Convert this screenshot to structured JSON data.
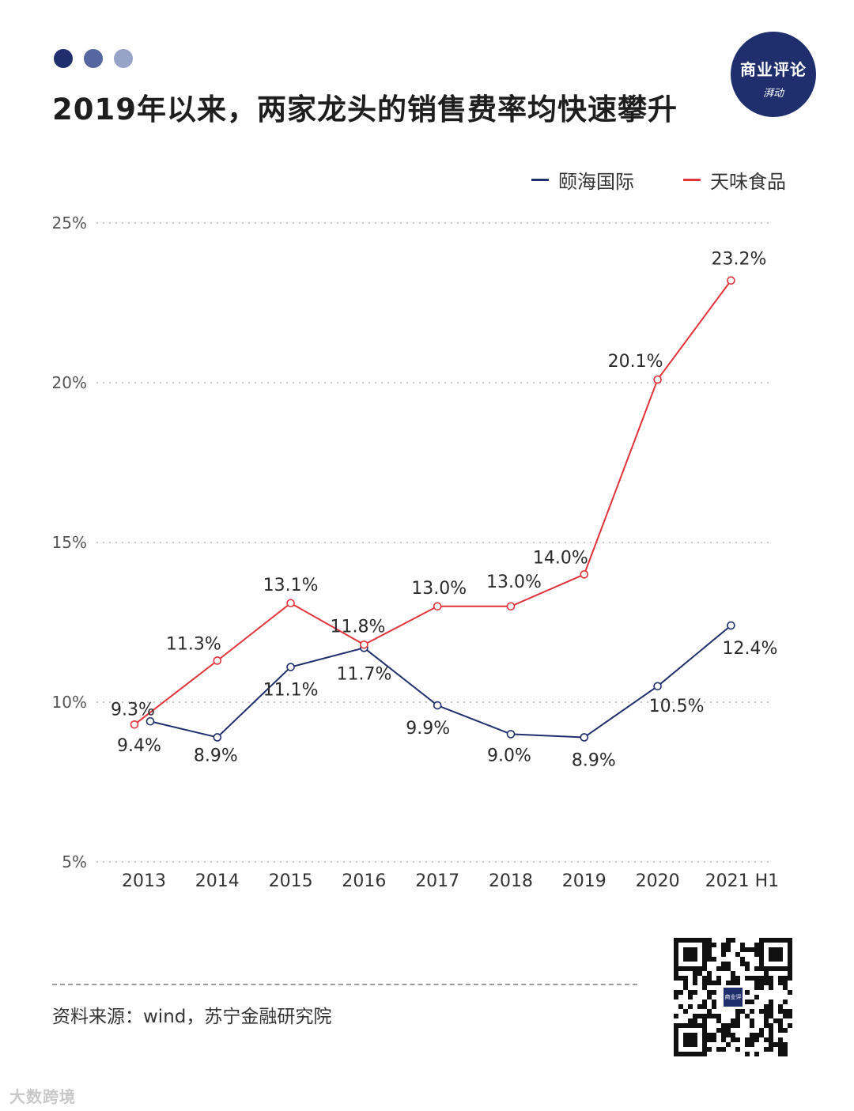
{
  "header": {
    "title": "2019年以来，两家龙头的销售费率均快速攀升",
    "dot_colors": [
      "#1f2f6e",
      "#5566a0",
      "#98a3c8"
    ]
  },
  "badge": {
    "line1": "商业评论",
    "line2": "湃动"
  },
  "legend": {
    "items": [
      {
        "label": "颐海国际",
        "color": "#1f2f6e"
      },
      {
        "label": "天味食品",
        "color": "#e0333a"
      }
    ]
  },
  "chart_data": {
    "type": "line",
    "title": "2019年以来，两家龙头的销售费率均快速攀升",
    "xlabel": "",
    "ylabel": "",
    "categories": [
      "2013",
      "2014",
      "2015",
      "2016",
      "2017",
      "2018",
      "2019",
      "2020",
      "2021 H1"
    ],
    "ylim": [
      5,
      25
    ],
    "yticks": [
      5,
      10,
      15,
      20,
      25
    ],
    "ytick_labels": [
      "5%",
      "10%",
      "15%",
      "20%",
      "25%"
    ],
    "grid": true,
    "legend_position": "top-right",
    "series": [
      {
        "name": "颐海国际",
        "color": "#1f2f6e",
        "values": [
          9.4,
          8.9,
          11.1,
          11.7,
          9.9,
          9.0,
          8.9,
          10.5,
          12.4
        ],
        "labels": [
          "9.4%",
          "8.9%",
          "11.1%",
          "11.7%",
          "9.9%",
          "9.0%",
          "8.9%",
          "10.5%",
          "12.4%"
        ]
      },
      {
        "name": "天味食品",
        "color": "#e0333a",
        "values": [
          9.3,
          11.3,
          13.1,
          11.8,
          13.0,
          13.0,
          14.0,
          20.1,
          23.2
        ],
        "labels": [
          "9.3%",
          "11.3%",
          "13.1%",
          "11.8%",
          "13.0%",
          "13.0%",
          "14.0%",
          "20.1%",
          "23.2%"
        ]
      }
    ]
  },
  "footer": {
    "source": "资料来源：wind，苏宁金融研究院",
    "qr_label": "商业评论 湃动",
    "watermark": "大数跨境"
  }
}
